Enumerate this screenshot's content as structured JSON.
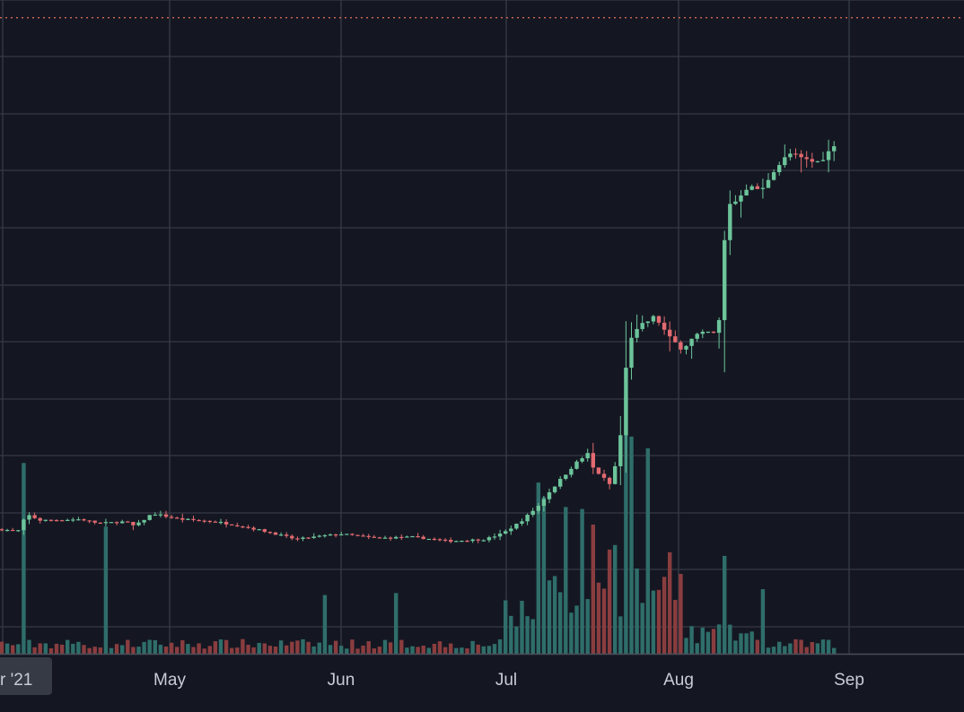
{
  "chart_data": {
    "type": "candlestick",
    "x_tick_labels": [
      "r '21",
      "May",
      "Jun",
      "Jul",
      "Aug",
      "Sep"
    ],
    "y_range": [
      0,
      1160
    ],
    "volume_range": [
      0,
      320
    ],
    "grid": true,
    "colors": {
      "background": "#141722",
      "grid": "#363a45",
      "up": "#6cc49a",
      "down": "#e26a70",
      "volume_up": "#2f6e6a",
      "volume_down": "#8a3d3f",
      "price_line": "#e8725c",
      "label_box": "#363a45",
      "label_text": "#c9ccd6"
    },
    "last_price_line": 1130,
    "first_label_box": true,
    "price_anchors": [
      [
        0,
        265
      ],
      [
        20,
        262
      ],
      [
        30,
        290
      ],
      [
        45,
        280
      ],
      [
        90,
        282
      ],
      [
        110,
        275
      ],
      [
        140,
        278
      ],
      [
        150,
        270
      ],
      [
        170,
        292
      ],
      [
        200,
        282
      ],
      [
        240,
        278
      ],
      [
        270,
        270
      ],
      [
        300,
        260
      ],
      [
        330,
        248
      ],
      [
        360,
        254
      ],
      [
        380,
        257
      ],
      [
        420,
        250
      ],
      [
        460,
        252
      ],
      [
        500,
        245
      ],
      [
        540,
        248
      ],
      [
        560,
        258
      ],
      [
        580,
        278
      ],
      [
        600,
        305
      ],
      [
        610,
        325
      ],
      [
        640,
        375
      ],
      [
        655,
        393
      ],
      [
        660,
        370
      ],
      [
        680,
        340
      ],
      [
        690,
        400
      ],
      [
        700,
        585
      ],
      [
        715,
        610
      ],
      [
        730,
        625
      ],
      [
        745,
        590
      ],
      [
        760,
        570
      ],
      [
        775,
        593
      ],
      [
        790,
        598
      ],
      [
        800,
        593
      ],
      [
        810,
        815
      ],
      [
        820,
        820
      ],
      [
        830,
        843
      ],
      [
        850,
        840
      ],
      [
        860,
        870
      ],
      [
        880,
        900
      ],
      [
        895,
        890
      ],
      [
        910,
        885
      ],
      [
        925,
        905
      ],
      [
        935,
        935
      ]
    ],
    "volume_spikes": [
      [
        28,
        195
      ],
      [
        120,
        130
      ],
      [
        360,
        60
      ],
      [
        440,
        62
      ],
      [
        598,
        175
      ],
      [
        605,
        160
      ],
      [
        632,
        150
      ],
      [
        648,
        148
      ],
      [
        697,
        264
      ],
      [
        705,
        222
      ],
      [
        723,
        210
      ],
      [
        810,
        100
      ],
      [
        852,
        66
      ]
    ],
    "volume_windows": [
      [
        560,
        600,
        40
      ],
      [
        600,
        650,
        70
      ],
      [
        650,
        690,
        90
      ],
      [
        690,
        760,
        70
      ],
      [
        760,
        840,
        20
      ]
    ]
  }
}
